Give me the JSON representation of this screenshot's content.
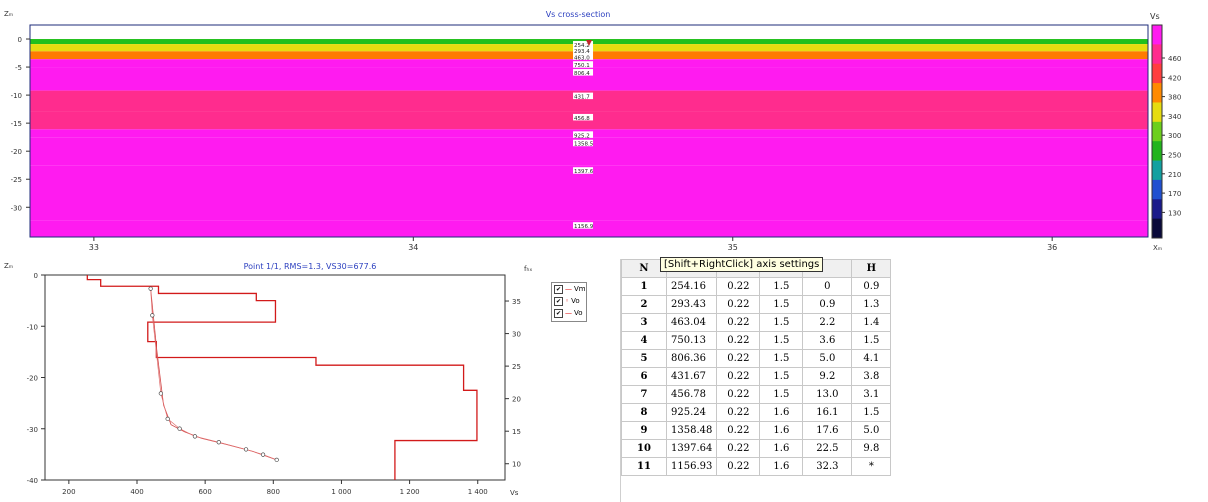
{
  "top": {
    "title": "Vs cross-section",
    "z_axis": "Zₘ",
    "x_axis": "Xₘ",
    "colorbar_title": "Vs",
    "yticks": [
      0,
      -5,
      -10,
      -15,
      -20,
      -25,
      -30
    ],
    "xticks": [
      33,
      34,
      35,
      36
    ],
    "colorbar_ticks": [
      460,
      420,
      380,
      340,
      300,
      250,
      210,
      170,
      130
    ],
    "layer_labels": [
      "254.2",
      "293.4",
      "463.0",
      "750.1",
      "806.4",
      "431.7",
      "456.8",
      "925.2",
      "1358.5",
      "1397.6",
      "1156.9"
    ],
    "colors": {
      "green": "#22c01c",
      "yellow": "#e6dc10",
      "orange": "#ff7a00",
      "magenta": "#ff1bf0",
      "pink": "#ff2c8e",
      "frame": "#1c2b7a"
    }
  },
  "chart_data": [
    {
      "type": "heatmap",
      "title": "Vs cross-section",
      "xlabel": "Xₘ",
      "ylabel": "Zₘ",
      "xlim": [
        32.8,
        36.3
      ],
      "ylim": [
        -35.3,
        2.5
      ],
      "layers": [
        {
          "top": 0,
          "bottom": -0.9,
          "vs": 254.16
        },
        {
          "top": -0.9,
          "bottom": -2.2,
          "vs": 293.43
        },
        {
          "top": -2.2,
          "bottom": -3.6,
          "vs": 463.04
        },
        {
          "top": -3.6,
          "bottom": -5.0,
          "vs": 750.13
        },
        {
          "top": -5.0,
          "bottom": -9.2,
          "vs": 806.36
        },
        {
          "top": -9.2,
          "bottom": -13.0,
          "vs": 431.67
        },
        {
          "top": -13.0,
          "bottom": -16.1,
          "vs": 456.78
        },
        {
          "top": -16.1,
          "bottom": -17.6,
          "vs": 925.24
        },
        {
          "top": -17.6,
          "bottom": -22.5,
          "vs": 1358.48
        },
        {
          "top": -22.5,
          "bottom": -32.3,
          "vs": 1397.64
        },
        {
          "top": -32.3,
          "bottom": -35.3,
          "vs": 1156.93
        }
      ]
    },
    {
      "type": "line",
      "title": "Point 1/1, RMS=1.3, VS30=677.6",
      "xlabel": "Vs",
      "ylabel": "Zₘ",
      "y2label": "fₕₓ",
      "xlim": [
        130,
        1480
      ],
      "ylim": [
        -40,
        0
      ],
      "y2lim": [
        7.5,
        39
      ],
      "xticks": [
        200,
        400,
        600,
        800,
        1000,
        1200,
        1400
      ],
      "xtick_labels": [
        "200",
        "400",
        "600",
        "800",
        "1 000",
        "1 200",
        "1 400"
      ],
      "yticks": [
        0,
        -10,
        -20,
        -30,
        -40
      ],
      "y2ticks": [
        35,
        30,
        25,
        20,
        15,
        10
      ],
      "series": [
        {
          "name": "Vm",
          "type": "step",
          "depths": [
            0,
            0.9,
            2.2,
            3.6,
            5.0,
            9.2,
            13.0,
            16.1,
            17.6,
            22.5,
            32.3,
            40
          ],
          "vs": [
            254.16,
            293.43,
            463.04,
            750.13,
            806.36,
            431.67,
            456.78,
            925.24,
            1358.48,
            1397.64,
            1156.93
          ]
        },
        {
          "name": "Vo",
          "marker": "circle",
          "x": [
            440,
            445,
            470,
            490,
            525,
            570,
            640,
            720,
            770,
            810
          ],
          "y": [
            36.9,
            32.8,
            20.8,
            16.9,
            15.4,
            14.2,
            13.3,
            12.2,
            11.4,
            10.6
          ]
        },
        {
          "name": "Vo",
          "type": "line",
          "x": [
            440,
            458,
            478,
            500,
            540,
            590,
            660,
            740,
            810
          ],
          "y": [
            36.9,
            27.5,
            19.0,
            16.0,
            14.9,
            13.9,
            13.0,
            11.9,
            10.6
          ]
        }
      ]
    }
  ],
  "bottom": {
    "title": "Point 1/1, RMS=1.3, VS30=677.6",
    "z_axis": "Zₘ",
    "f_axis": "fₕₓ",
    "x_axis": "Vs",
    "legend": [
      "Vm",
      "Vo",
      "Vo"
    ],
    "check": "✔"
  },
  "tooltip": "[Shift+RightClick] axis settings",
  "table": {
    "headers": [
      "N",
      "",
      "",
      "",
      "",
      "H"
    ],
    "rows": [
      [
        "1",
        "254.16",
        "0.22",
        "1.5",
        "0",
        "0.9"
      ],
      [
        "2",
        "293.43",
        "0.22",
        "1.5",
        "0.9",
        "1.3"
      ],
      [
        "3",
        "463.04",
        "0.22",
        "1.5",
        "2.2",
        "1.4"
      ],
      [
        "4",
        "750.13",
        "0.22",
        "1.5",
        "3.6",
        "1.5"
      ],
      [
        "5",
        "806.36",
        "0.22",
        "1.5",
        "5.0",
        "4.1"
      ],
      [
        "6",
        "431.67",
        "0.22",
        "1.5",
        "9.2",
        "3.8"
      ],
      [
        "7",
        "456.78",
        "0.22",
        "1.5",
        "13.0",
        "3.1"
      ],
      [
        "8",
        "925.24",
        "0.22",
        "1.6",
        "16.1",
        "1.5"
      ],
      [
        "9",
        "1358.48",
        "0.22",
        "1.6",
        "17.6",
        "5.0"
      ],
      [
        "10",
        "1397.64",
        "0.22",
        "1.6",
        "22.5",
        "9.8"
      ],
      [
        "11",
        "1156.93",
        "0.22",
        "1.6",
        "32.3",
        "*"
      ]
    ]
  }
}
